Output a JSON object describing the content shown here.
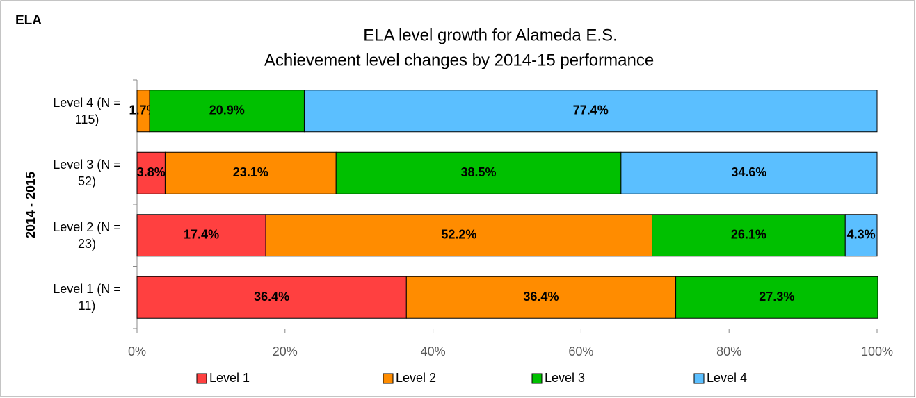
{
  "chart_data": {
    "type": "stacked-bar-horizontal",
    "corner_label": "ELA",
    "title": "ELA level growth for Alameda E.S.",
    "subtitle": "Achievement level changes by 2014-15 performance",
    "y_label": "2014 - 2015",
    "categories": [
      "Level 4 (N = 115)",
      "Level 3 (N = 52)",
      "Level 2 (N = 23)",
      "Level 1 (N = 11)"
    ],
    "series": [
      {
        "name": "Level 1",
        "color": "#ff4040",
        "values": [
          null,
          3.8,
          17.4,
          36.4
        ],
        "value_labels": [
          null,
          "3.8%",
          "17.4%",
          "36.4%"
        ]
      },
      {
        "name": "Level 2",
        "color": "#ff8c00",
        "values": [
          1.7,
          23.1,
          52.2,
          36.4
        ],
        "value_labels": [
          "1.7%",
          "23.1%",
          "52.2%",
          "36.4%"
        ]
      },
      {
        "name": "Level 3",
        "color": "#00c000",
        "values": [
          20.9,
          38.5,
          26.1,
          27.3
        ],
        "value_labels": [
          "20.9%",
          "38.5%",
          "26.1%",
          "27.3%"
        ]
      },
      {
        "name": "Level 4",
        "color": "#5bbfff",
        "values": [
          77.4,
          34.6,
          4.3,
          null
        ],
        "value_labels": [
          "77.4%",
          "34.6%",
          "4.3%",
          null
        ]
      }
    ],
    "xlim": [
      0,
      100
    ],
    "xticks": [
      {
        "value": 0,
        "label": "0%"
      },
      {
        "value": 20,
        "label": "20%"
      },
      {
        "value": 40,
        "label": "40%"
      },
      {
        "value": 60,
        "label": "60%"
      },
      {
        "value": 80,
        "label": "80%"
      },
      {
        "value": 100,
        "label": "100%"
      }
    ],
    "legend": "bottom"
  }
}
